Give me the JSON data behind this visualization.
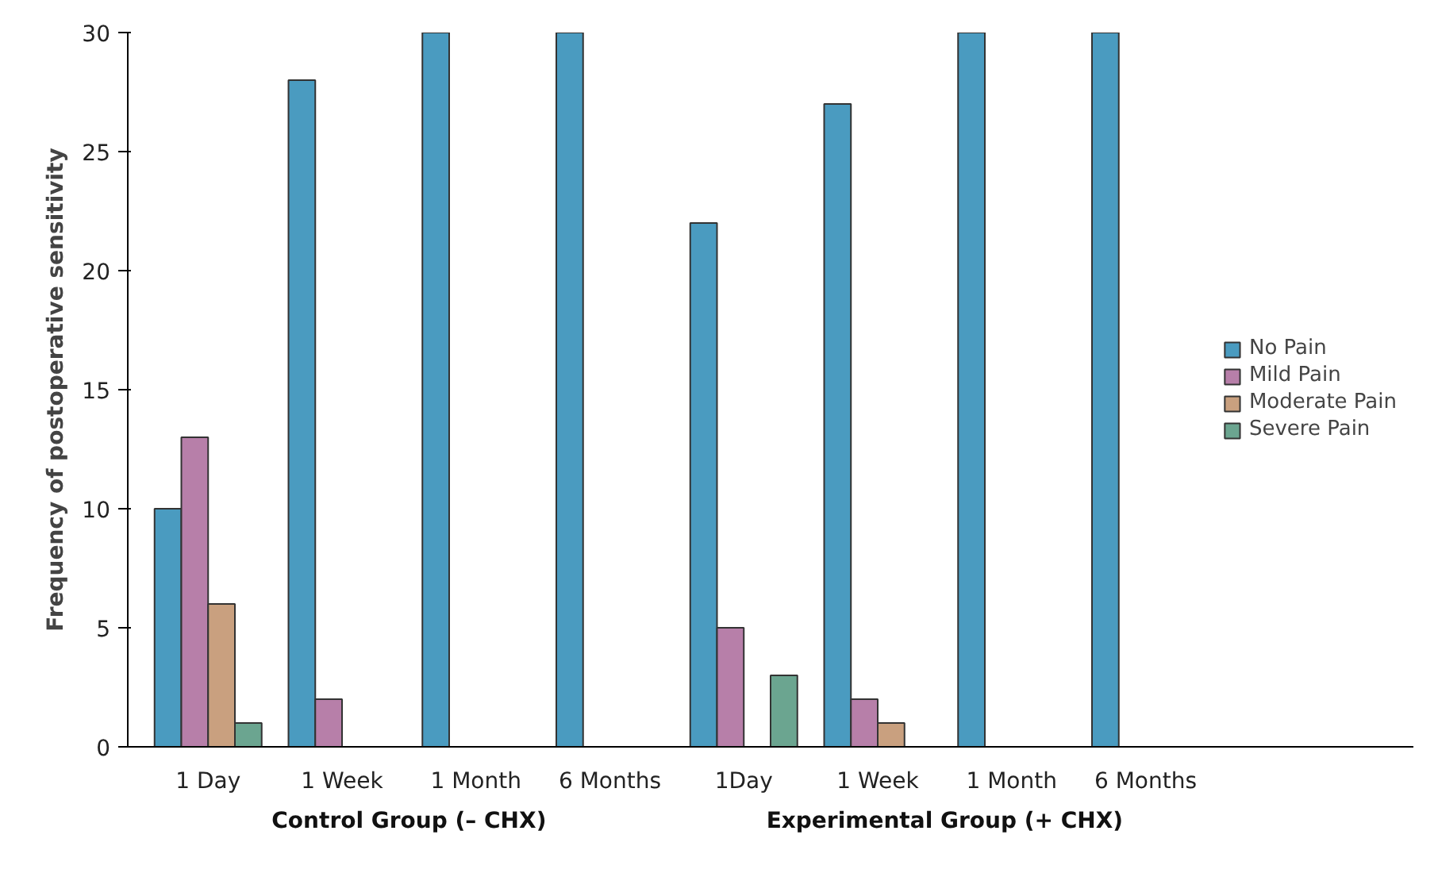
{
  "chart_data": {
    "type": "bar",
    "ylabel": "Frequency of postoperative sensitivity",
    "categories": [
      "1 Day",
      "1 Week",
      "1 Month",
      "6 Months",
      "1Day",
      "1 Week",
      "1 Month",
      "6 Months"
    ],
    "series": [
      {
        "name": "No Pain",
        "color": "#4a9bc0",
        "values": [
          10,
          28,
          30,
          30,
          22,
          27,
          30,
          30
        ]
      },
      {
        "name": "Mild Pain",
        "color": "#b77fa9",
        "values": [
          13,
          2,
          0,
          0,
          5,
          2,
          0,
          0
        ]
      },
      {
        "name": "Moderate Pain",
        "color": "#c9a07f",
        "values": [
          6,
          0,
          0,
          0,
          0,
          1,
          0,
          0
        ]
      },
      {
        "name": "Severe Pain",
        "color": "#6ba590",
        "values": [
          1,
          0,
          0,
          0,
          3,
          0,
          0,
          0
        ]
      }
    ],
    "annotations": [
      "Control Group (– CHX)",
      "Experimental Group (+ CHX)"
    ],
    "ylim": [
      0,
      30
    ],
    "yticks": [
      0,
      5,
      10,
      15,
      20,
      25,
      30
    ],
    "grid": false,
    "legend": "right"
  }
}
